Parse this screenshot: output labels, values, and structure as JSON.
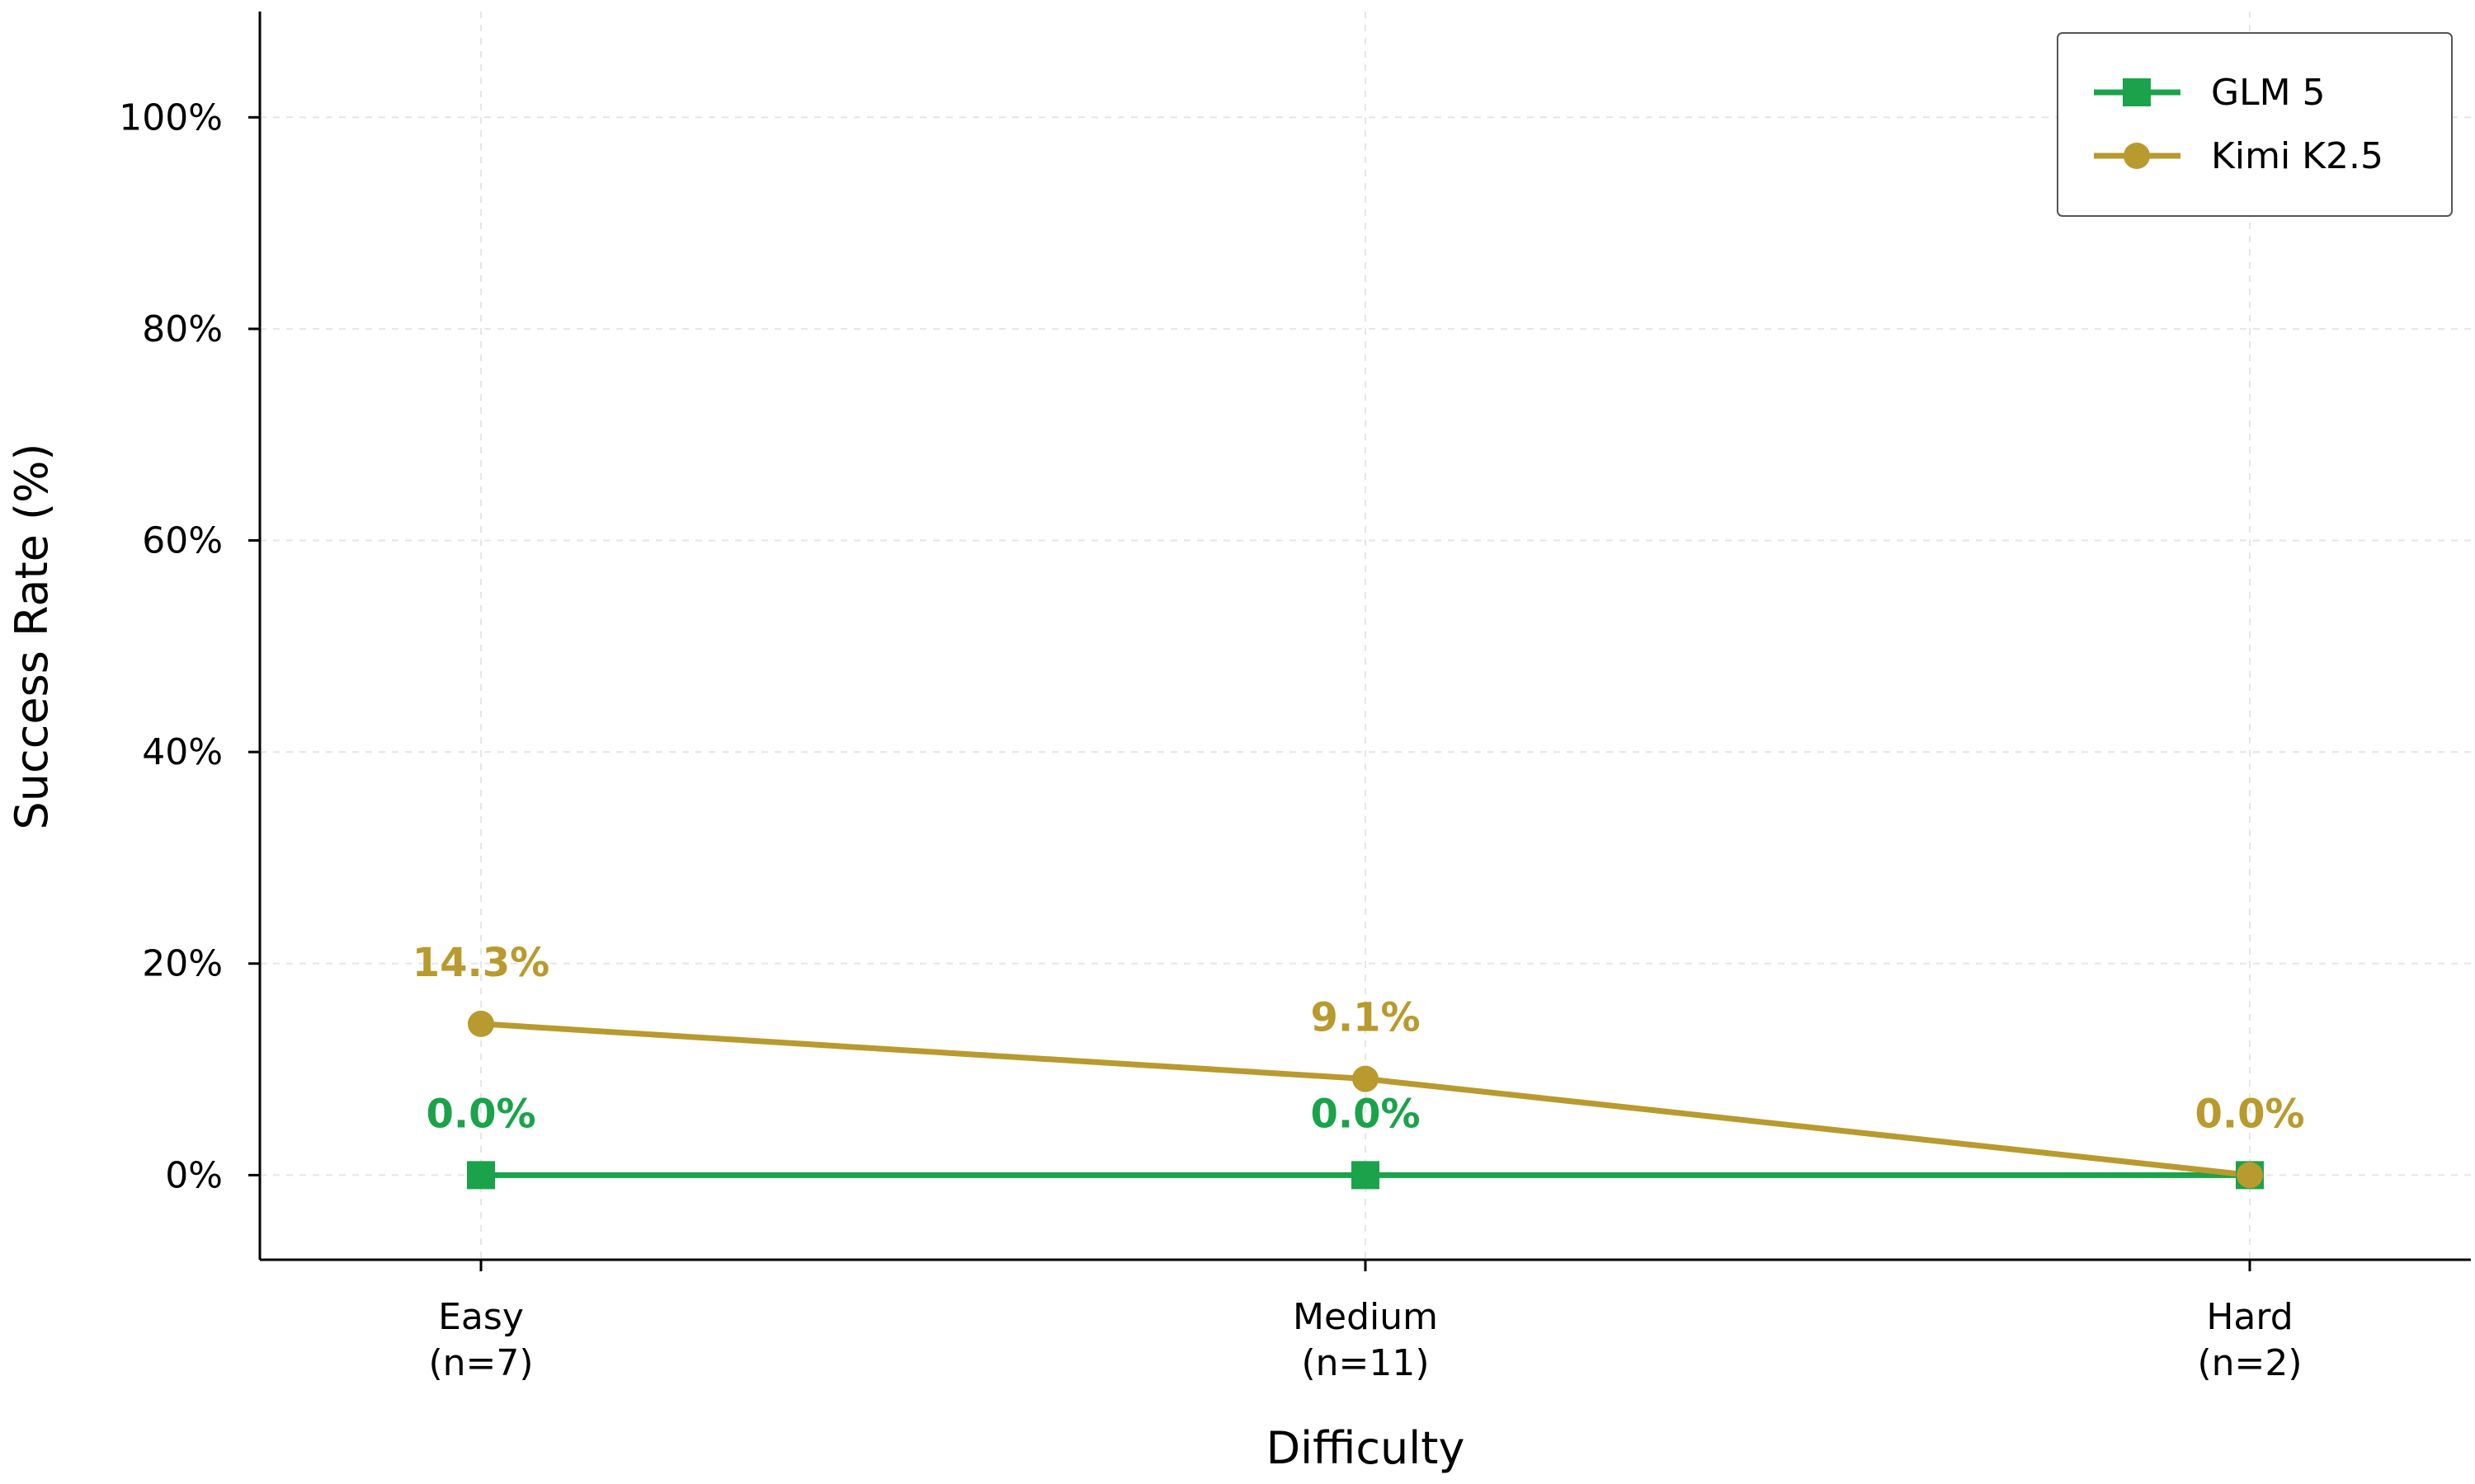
{
  "chart_data": {
    "type": "line",
    "categories": [
      "Easy",
      "Medium",
      "Hard"
    ],
    "category_sublabels": [
      "(n=7)",
      "(n=11)",
      "(n=2)"
    ],
    "xlabel": "Difficulty",
    "ylabel": "Success Rate (%)",
    "ylim": [
      -8,
      110
    ],
    "yticks": [
      0,
      20,
      40,
      60,
      80,
      100
    ],
    "ytick_labels": [
      "0%",
      "20%",
      "40%",
      "60%",
      "80%",
      "100%"
    ],
    "grid": true,
    "legend_position": "top-right",
    "series": [
      {
        "name": "GLM 5",
        "values": [
          0.0,
          0.0,
          0.0
        ],
        "labels": [
          "0.0%",
          "0.0%",
          null
        ],
        "color": "#1aa34a",
        "marker": "square"
      },
      {
        "name": "Kimi K2.5",
        "values": [
          14.3,
          9.1,
          0.0
        ],
        "labels": [
          "14.3%",
          "9.1%",
          "0.0%"
        ],
        "color": "#b89a2e",
        "marker": "circle"
      }
    ]
  }
}
